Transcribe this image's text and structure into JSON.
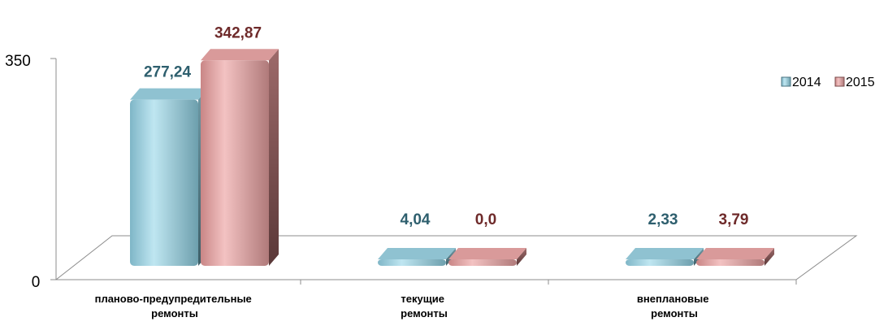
{
  "chart_data": {
    "type": "bar",
    "categories": [
      [
        "планово-предупредительные",
        "ремонты"
      ],
      [
        "текущие",
        "ремонты"
      ],
      [
        "внеплановые",
        "ремонты"
      ]
    ],
    "series": [
      {
        "name": "2014",
        "values": [
          277.24,
          4.04,
          2.33
        ],
        "labels": [
          "277,24",
          "4,04",
          "2,33"
        ],
        "color": "#9fd3e2",
        "label_color": "#2e5f6e"
      },
      {
        "name": "2015",
        "values": [
          342.87,
          0.0,
          3.79
        ],
        "labels": [
          "342,87",
          "0,0",
          "3,79"
        ],
        "color": "#e8a6a6",
        "label_color": "#6e2a2a"
      }
    ],
    "yticks": [
      "350",
      "0"
    ],
    "ylim": [
      0,
      350
    ],
    "legend_position": "top-right",
    "grid": false
  }
}
